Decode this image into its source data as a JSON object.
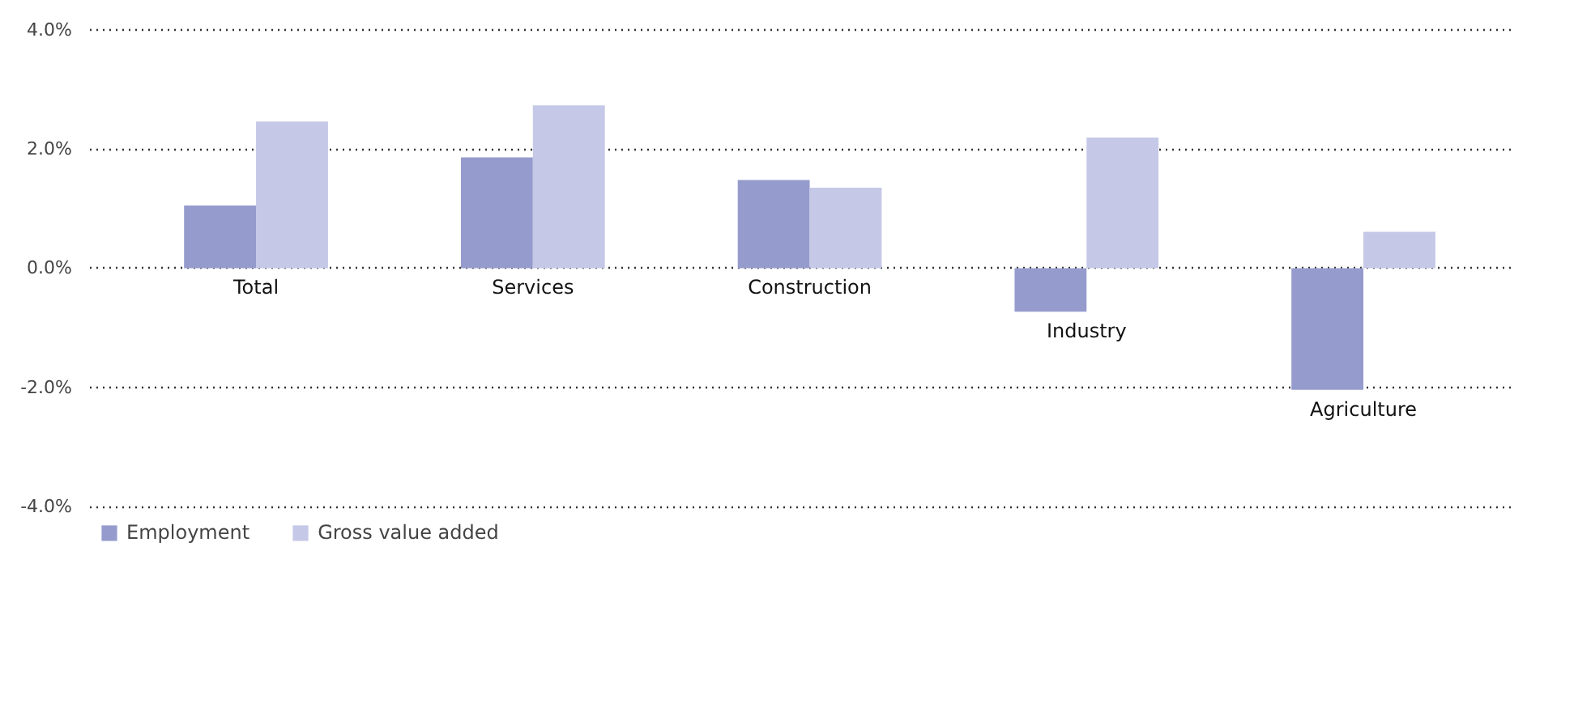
{
  "chart_data": {
    "type": "bar",
    "categories": [
      "Total",
      "Services",
      "Construction",
      "Industry",
      "Agriculture"
    ],
    "series": [
      {
        "name": "Employment",
        "color": "#969bcd",
        "values": [
          1.05,
          1.86,
          1.48,
          -0.73,
          -2.04
        ]
      },
      {
        "name": "Gross value added",
        "color": "#c5c8e6",
        "values": [
          2.46,
          2.73,
          1.35,
          2.19,
          0.61
        ]
      }
    ],
    "ylim": [
      -4.0,
      4.0
    ],
    "yticks": [
      {
        "value": -4,
        "label": "-4.0%"
      },
      {
        "value": -2,
        "label": "-2.0%"
      },
      {
        "value": 0,
        "label": "0.0%"
      },
      {
        "value": 2,
        "label": "2.0%"
      },
      {
        "value": 4,
        "label": "4.0%"
      }
    ],
    "grid": "y",
    "legend": "bottom left"
  }
}
